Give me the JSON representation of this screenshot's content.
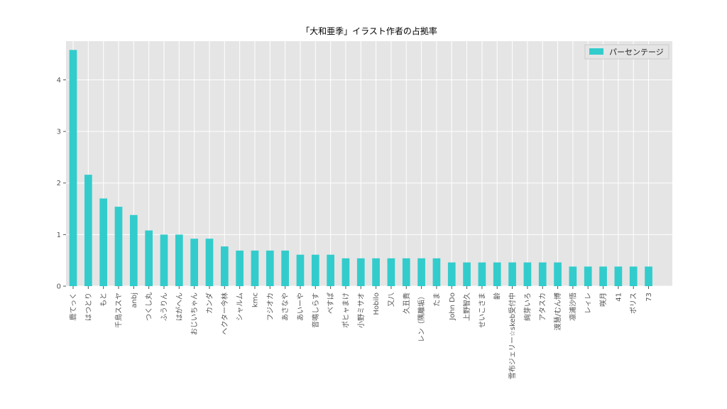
{
  "chart_data": {
    "type": "bar",
    "title": "「大和亜季」イラスト作者の占拠率",
    "legend": {
      "label": "パーセンテージ",
      "placement": "top-right"
    },
    "bar_color": "#33CCCC",
    "grid": true,
    "ylim": [
      0,
      4.75
    ],
    "yticks": [
      0,
      1,
      2,
      3,
      4
    ],
    "ytick_labels": [
      "0",
      "1",
      "2",
      "3",
      "4"
    ],
    "categories": [
      "鹿てっく",
      "はつとり",
      "もと",
      "千鳥ススヤ",
      "anbj",
      "つくし丸",
      "ふうりん",
      "はがへん",
      "おじいちゃん",
      "カンダ",
      "ヘクター今林",
      "シャルム",
      "kmc",
      "フジオカ",
      "あさなや",
      "あいーや",
      "音鳴しらす",
      "べすぱ",
      "ポヒャまけ",
      "小野ミサオ",
      "Hobilo",
      "又八",
      "久丑貴",
      "レン（隅離垢）",
      "たま",
      "John Do",
      "上野智久",
      "せいこさま",
      "齢",
      "雪布ジェリー☆skeb受付中",
      "絢芽いろ",
      "アタスカ",
      "渡慧/むん博",
      "凛浦沙悟",
      "レィレ",
      "咲月",
      "41",
      "ボリス",
      "73"
    ],
    "values": [
      4.58,
      2.16,
      1.7,
      1.54,
      1.38,
      1.08,
      1.0,
      1.0,
      0.92,
      0.92,
      0.77,
      0.69,
      0.69,
      0.69,
      0.69,
      0.61,
      0.61,
      0.61,
      0.54,
      0.54,
      0.54,
      0.54,
      0.54,
      0.54,
      0.54,
      0.46,
      0.46,
      0.46,
      0.46,
      0.46,
      0.46,
      0.46,
      0.46,
      0.38,
      0.38,
      0.38,
      0.38,
      0.38,
      0.38
    ]
  }
}
